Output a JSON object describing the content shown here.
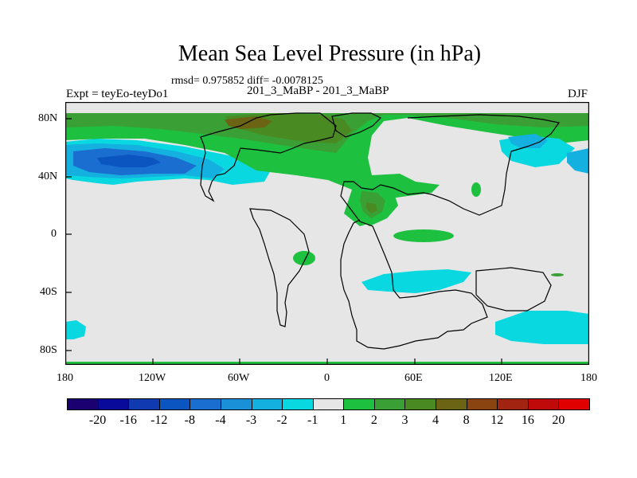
{
  "title": "Mean Sea Level Pressure (in hPa)",
  "stats": "rmsd= 0.975852  diff= -0.0078125",
  "experiment": "Expt = teyEo-teyDo1",
  "subtitle": "201_3_MaBP - 201_3_MaBP",
  "season": "DJF",
  "x_ticks": [
    "180",
    "120W",
    "60W",
    "0",
    "60E",
    "120E",
    "180"
  ],
  "y_ticks": [
    "80N",
    "40N",
    "0",
    "40S",
    "80S"
  ],
  "colorbar": {
    "labels": [
      "-20",
      "-16",
      "-12",
      "-8",
      "-4",
      "-3",
      "-2",
      "-1",
      "1",
      "2",
      "3",
      "4",
      "8",
      "12",
      "16",
      "20"
    ],
    "colors": [
      "#1a0070",
      "#0a0a9a",
      "#0f3ab0",
      "#0a55c0",
      "#1a6ed0",
      "#1a90d8",
      "#14b0e0",
      "#0ad8e0",
      "#e6e6e6",
      "#1ec040",
      "#3aa036",
      "#4a8a22",
      "#6a6414",
      "#8a4410",
      "#a02410",
      "#c00a0a",
      "#e00000"
    ]
  },
  "colors": {
    "background": "#e6e6e6",
    "positive_light": "#1ec040",
    "positive_mid": "#3aa036",
    "positive_strong": "#4a8a22",
    "positive_max": "#6a6414",
    "negative_light": "#0ad8e0",
    "negative_mid": "#14b0e0",
    "negative_strong": "#1a6ed0",
    "negative_max": "#0a55c0"
  }
}
